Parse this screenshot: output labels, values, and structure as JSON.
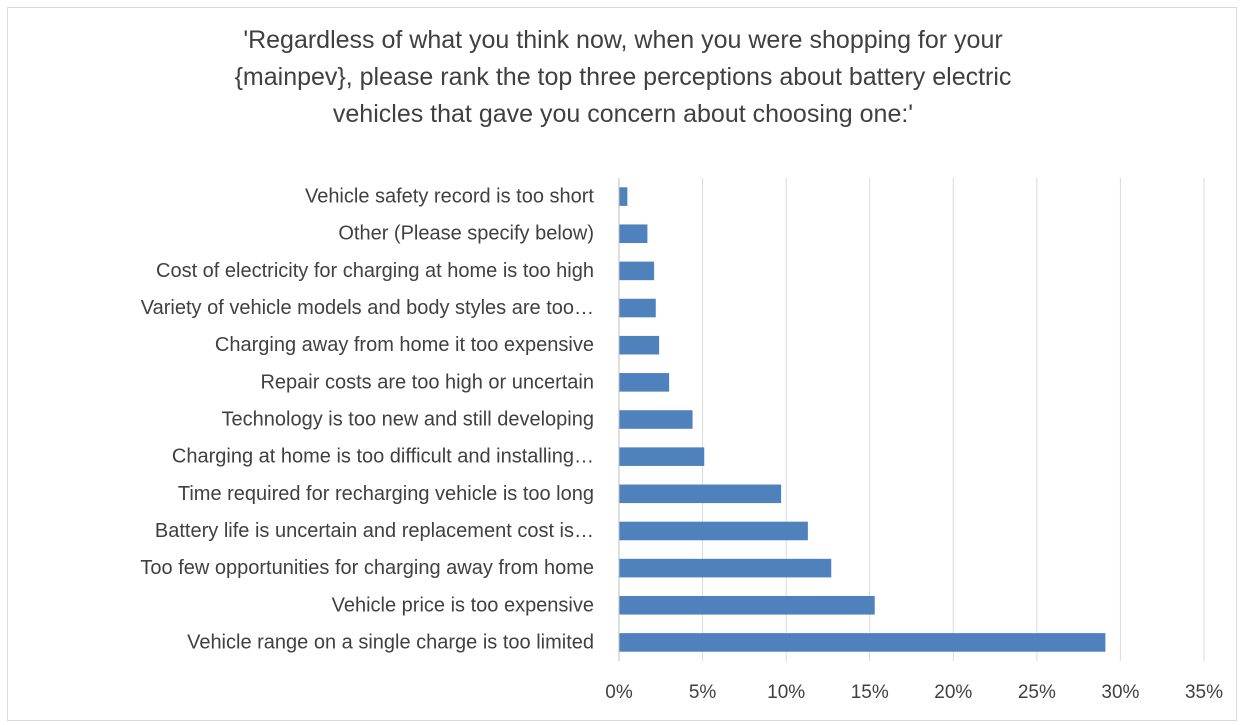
{
  "chart_data": {
    "type": "bar",
    "orientation": "horizontal",
    "title_lines": [
      "'Regardless of what you think now, when you were shopping for your",
      "{mainpev}, please rank the top three perceptions about battery electric",
      "vehicles that gave you concern about choosing one:'"
    ],
    "categories": [
      "Vehicle safety record is too short",
      "Other (Please specify below)",
      "Cost of electricity for charging at home is too high",
      "Variety of vehicle models and body styles are too…",
      "Charging away from home it too expensive",
      "Repair costs are too high or uncertain",
      "Technology is too new and still developing",
      "Charging at home is too difficult and installing…",
      "Time required for recharging vehicle is too long",
      "Battery life is uncertain and replacement cost is…",
      "Too few opportunities for charging away from home",
      "Vehicle price is too expensive",
      "Vehicle range on a single charge is too limited"
    ],
    "values": [
      0.5,
      1.7,
      2.1,
      2.2,
      2.4,
      3.0,
      4.4,
      5.1,
      9.7,
      11.3,
      12.7,
      15.3,
      29.1
    ],
    "xlim": [
      0,
      35
    ],
    "xticks": [
      0,
      5,
      10,
      15,
      20,
      25,
      30,
      35
    ],
    "xtick_labels": [
      "0%",
      "5%",
      "10%",
      "15%",
      "20%",
      "25%",
      "30%",
      "35%"
    ],
    "xlabel": "",
    "ylabel": "",
    "grid": "vertical",
    "legend": "none",
    "bar_color": "#4f81bd",
    "grid_color": "#d9d9d9",
    "axis_color": "#bfbfbf"
  }
}
